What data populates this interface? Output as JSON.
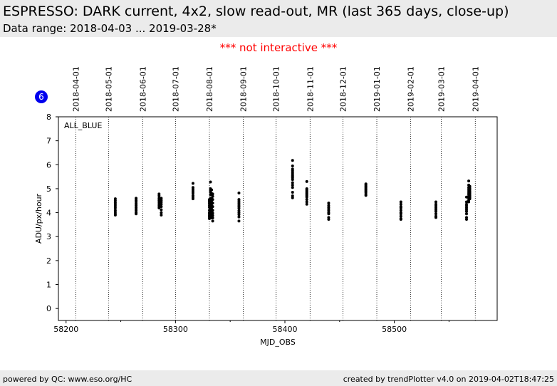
{
  "header": {
    "title": "ESPRESSO: DARK current, 4x2, slow read-out, MR (last 365 days, close-up)",
    "subtitle": "Data range: 2018-04-03 ... 2019-03-28*"
  },
  "notice": "*** not interactive ***",
  "badge": "6",
  "footer": {
    "left": "powered by QC: www.eso.org/HC",
    "right": "created by trendPlotter v4.0 on 2019-04-02T18:47:25"
  },
  "colors": {
    "points": "#000000",
    "badge": "#0000ee",
    "notice": "#ff0000",
    "band": "#ebebeb"
  },
  "chart_data": {
    "type": "scatter",
    "title": "",
    "xlabel": "MJD_OBS",
    "ylabel": "ADU/px/hour",
    "xlim": [
      58193,
      58594
    ],
    "ylim": [
      -0.5,
      8
    ],
    "xticks": [
      58200,
      58300,
      58400,
      58500
    ],
    "xtick_labels": [
      "58200",
      "58300",
      "58400",
      "58500"
    ],
    "yticks": [
      0,
      1,
      2,
      3,
      4,
      5,
      6,
      7,
      8
    ],
    "ytick_labels": [
      "0",
      "1",
      "2",
      "3",
      "4",
      "5",
      "6",
      "7",
      "8"
    ],
    "annotation": "ALL_BLUE",
    "date_lines": [
      {
        "label": "2018-04-01",
        "mjd": 58209
      },
      {
        "label": "2018-05-01",
        "mjd": 58239
      },
      {
        "label": "2018-06-01",
        "mjd": 58270
      },
      {
        "label": "2018-07-01",
        "mjd": 58300
      },
      {
        "label": "2018-08-01",
        "mjd": 58331
      },
      {
        "label": "2018-09-01",
        "mjd": 58362
      },
      {
        "label": "2018-10-01",
        "mjd": 58392
      },
      {
        "label": "2018-11-01",
        "mjd": 58423
      },
      {
        "label": "2018-12-01",
        "mjd": 58453
      },
      {
        "label": "2019-01-01",
        "mjd": 58484
      },
      {
        "label": "2019-02-01",
        "mjd": 58515
      },
      {
        "label": "2019-03-01",
        "mjd": 58543
      },
      {
        "label": "2019-04-01",
        "mjd": 58574
      }
    ],
    "series": [
      {
        "x": [
          58245,
          58245,
          58245,
          58245,
          58245,
          58245,
          58245,
          58245,
          58245,
          58245,
          58264,
          58264,
          58264,
          58264,
          58264,
          58264,
          58264,
          58264,
          58264,
          58264,
          58285,
          58285,
          58285,
          58285,
          58285,
          58285,
          58285,
          58285,
          58287,
          58287,
          58287,
          58287,
          58287,
          58287,
          58287,
          58287,
          58316,
          58316,
          58316,
          58316,
          58316,
          58316,
          58316,
          58316,
          58331,
          58331,
          58331,
          58331,
          58331,
          58331,
          58331,
          58331,
          58331,
          58331,
          58331,
          58331,
          58332,
          58332,
          58332,
          58332,
          58332,
          58332,
          58332,
          58332,
          58332,
          58332,
          58332,
          58332,
          58332,
          58332,
          58333,
          58333,
          58333,
          58333,
          58333,
          58333,
          58333,
          58333,
          58333,
          58333,
          58334,
          58334,
          58334,
          58334,
          58334,
          58334,
          58334,
          58334,
          58334,
          58334,
          58358,
          58358,
          58358,
          58358,
          58358,
          58358,
          58358,
          58358,
          58358,
          58358,
          58358,
          58358,
          58407,
          58407,
          58407,
          58407,
          58407,
          58407,
          58407,
          58407,
          58407,
          58407,
          58407,
          58407,
          58407,
          58407,
          58407,
          58407,
          58420,
          58420,
          58420,
          58420,
          58420,
          58420,
          58420,
          58420,
          58420,
          58420,
          58420,
          58420,
          58440,
          58440,
          58440,
          58440,
          58440,
          58440,
          58440,
          58440,
          58440,
          58474,
          58474,
          58474,
          58474,
          58474,
          58474,
          58474,
          58474,
          58474,
          58474,
          58506,
          58506,
          58506,
          58506,
          58506,
          58506,
          58506,
          58506,
          58506,
          58506,
          58538,
          58538,
          58538,
          58538,
          58538,
          58538,
          58538,
          58538,
          58538,
          58566,
          58566,
          58566,
          58566,
          58566,
          58566,
          58566,
          58566,
          58566,
          58566,
          58568,
          58568,
          58568,
          58568,
          58568,
          58568,
          58568,
          58568,
          58568,
          58568,
          58568,
          58568,
          58569,
          58569,
          58569,
          58569,
          58569,
          58569,
          58569,
          58569,
          58569,
          58569
        ],
        "y": [
          4.58,
          4.5,
          4.42,
          4.35,
          4.28,
          4.2,
          4.1,
          4.02,
          3.95,
          3.9,
          4.6,
          4.52,
          4.45,
          4.37,
          4.3,
          4.22,
          4.15,
          4.08,
          4.0,
          3.95,
          4.78,
          4.7,
          4.6,
          4.52,
          4.44,
          4.36,
          4.28,
          4.2,
          4.6,
          4.52,
          4.44,
          4.35,
          4.25,
          4.12,
          4.0,
          3.9,
          5.22,
          5.05,
          4.98,
          4.9,
          4.82,
          4.72,
          4.65,
          4.58,
          4.55,
          4.5,
          4.45,
          4.38,
          4.3,
          4.22,
          4.1,
          4.0,
          3.95,
          3.88,
          3.82,
          3.75,
          5.28,
          5.0,
          4.92,
          4.85,
          4.75,
          4.6,
          4.5,
          4.42,
          4.35,
          4.25,
          4.15,
          4.05,
          3.95,
          3.85,
          4.95,
          4.8,
          4.6,
          4.45,
          4.3,
          4.15,
          4.05,
          3.95,
          3.85,
          3.78,
          4.78,
          4.68,
          4.55,
          4.4,
          4.25,
          4.1,
          3.98,
          3.88,
          3.78,
          3.65,
          4.82,
          4.55,
          4.48,
          4.4,
          4.32,
          4.25,
          4.18,
          4.08,
          4.0,
          3.92,
          3.82,
          3.65,
          6.18,
          5.95,
          5.82,
          5.75,
          5.68,
          5.62,
          5.55,
          5.5,
          5.45,
          5.38,
          5.25,
          5.15,
          5.05,
          4.85,
          4.62,
          4.7,
          5.3,
          5.0,
          4.95,
          4.9,
          4.85,
          4.8,
          4.75,
          4.7,
          4.65,
          4.55,
          4.45,
          4.35,
          4.4,
          4.3,
          4.22,
          4.15,
          4.08,
          4.0,
          3.95,
          3.8,
          3.72,
          5.2,
          5.15,
          5.1,
          5.05,
          5.0,
          4.95,
          4.9,
          4.85,
          4.78,
          4.72,
          4.45,
          4.35,
          4.25,
          4.2,
          4.1,
          4.0,
          3.95,
          3.85,
          3.75,
          3.72,
          4.45,
          4.35,
          4.28,
          4.2,
          4.12,
          4.05,
          3.95,
          3.85,
          3.8,
          4.65,
          4.45,
          4.35,
          4.28,
          4.2,
          4.12,
          4.05,
          3.95,
          3.8,
          3.72,
          5.32,
          5.15,
          5.05,
          4.98,
          4.9,
          4.82,
          4.75,
          4.68,
          4.6,
          4.52,
          4.48,
          4.45,
          5.1,
          5.02,
          4.95,
          4.88,
          4.82,
          4.78,
          4.72,
          4.68,
          4.62,
          4.58
        ]
      }
    ]
  }
}
